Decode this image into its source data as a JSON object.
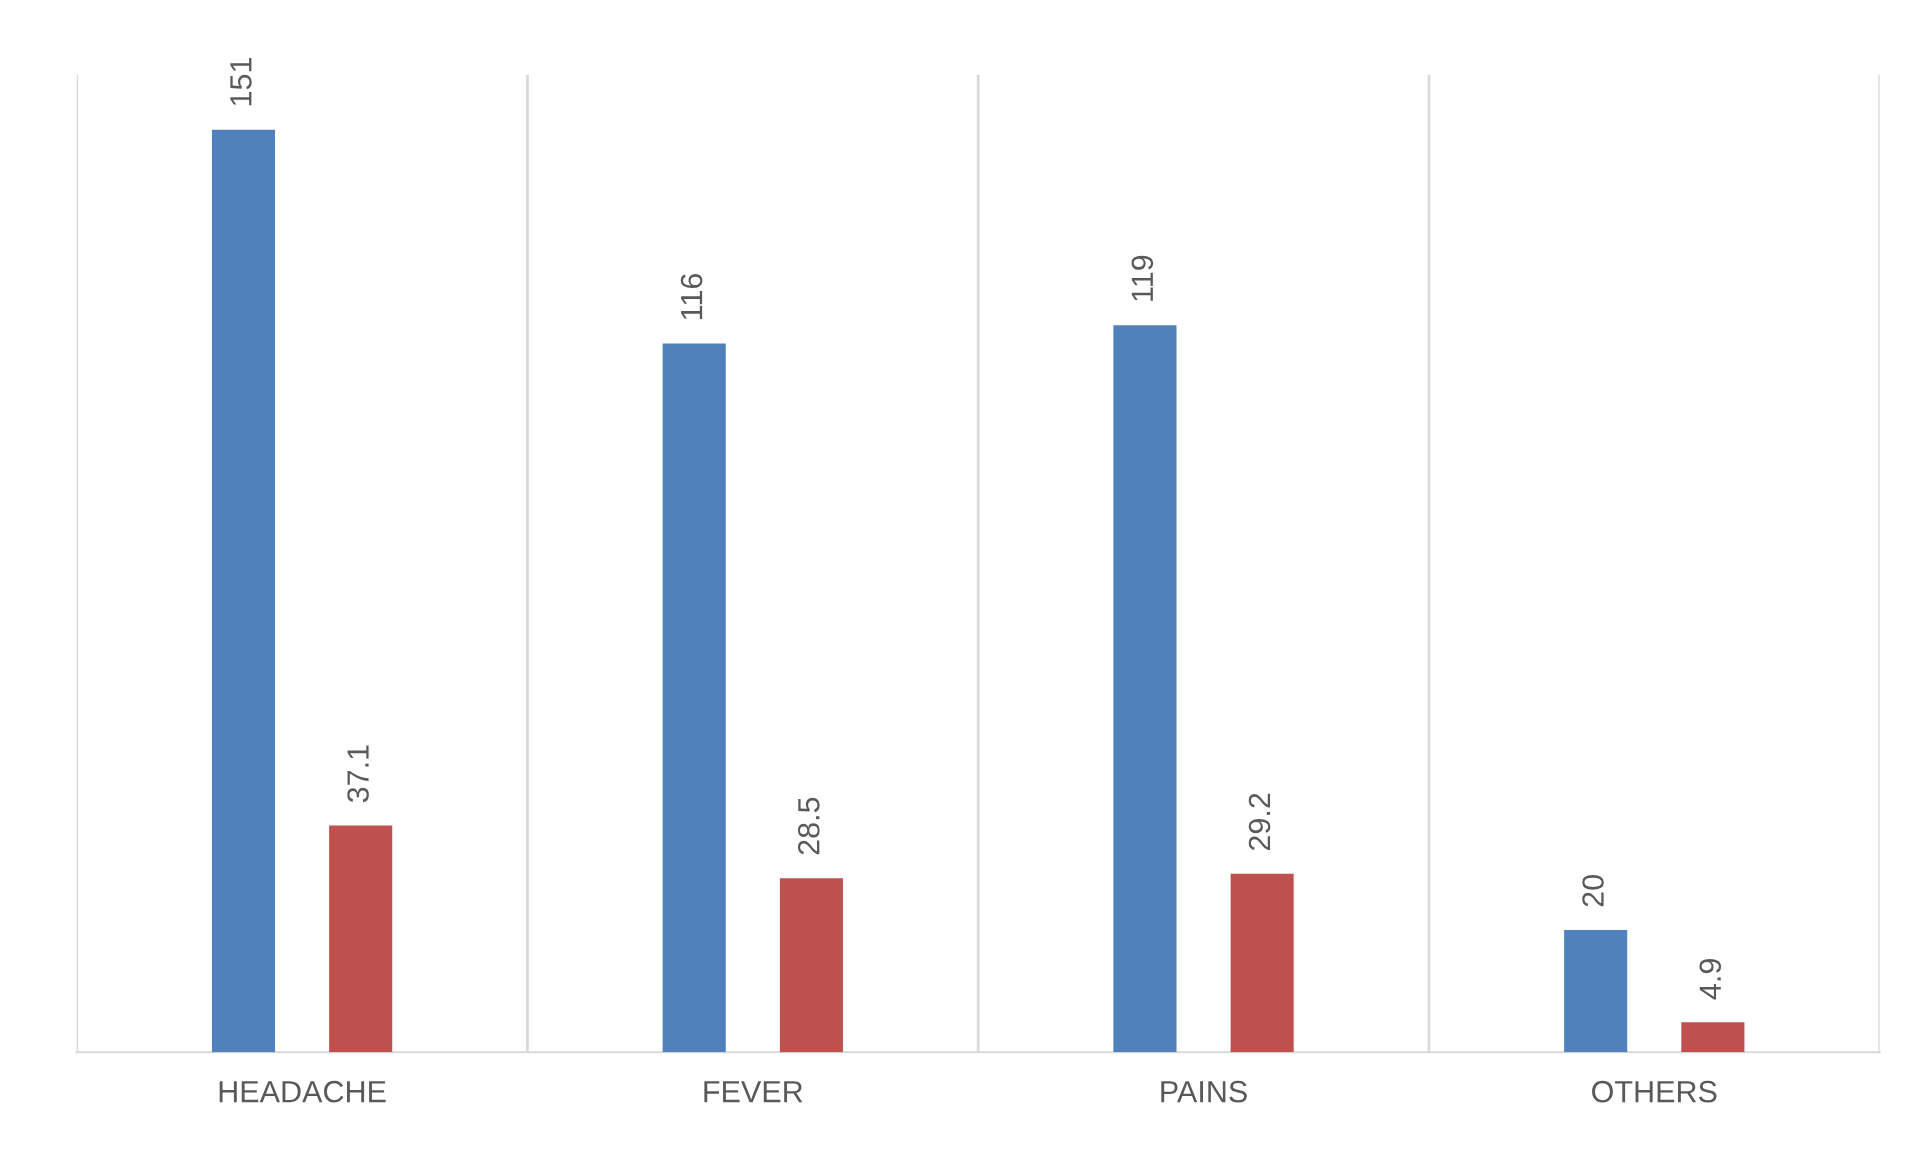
{
  "chart_data": {
    "type": "bar",
    "categories": [
      "HEADACHE",
      "FEVER",
      "PAINS",
      "OTHERS"
    ],
    "series": [
      {
        "color": "#4f81bd",
        "values": [
          151,
          116,
          119,
          20
        ]
      },
      {
        "color": "#c0504d",
        "values": [
          37.1,
          28.5,
          29.2,
          4.9
        ]
      }
    ],
    "ylim": [
      0,
      160
    ],
    "data_labels": true,
    "grid": "x",
    "tick_labels": "x",
    "legend": false
  }
}
